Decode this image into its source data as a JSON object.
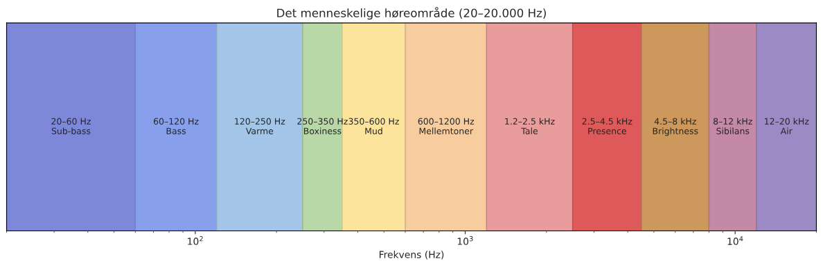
{
  "chart_data": {
    "type": "bar",
    "orientation": "horizontal",
    "title": "Det menneskelige høreområde (20–20.000 Hz)",
    "xlabel": "Frekvens (Hz)",
    "log": "x",
    "xlim": [
      20,
      20000
    ],
    "xticks": [
      {
        "value": 100,
        "label": "10$^{2}$"
      },
      {
        "value": 1000,
        "label": "10$^{3}$"
      },
      {
        "value": 10000,
        "label": "10$^{4}$"
      }
    ],
    "tick_labels": "x",
    "categories": [
      null
    ],
    "series": [
      {
        "base": [
          20
        ],
        "values": [
          40
        ],
        "value_labels": [
          "20–60 Hz\nSub-bass"
        ],
        "color": "#7d89d8"
      },
      {
        "base": [
          60
        ],
        "values": [
          60
        ],
        "value_labels": [
          "60–120 Hz\nBass"
        ],
        "color": "#88a0ec"
      },
      {
        "base": [
          120
        ],
        "values": [
          130
        ],
        "value_labels": [
          "120–250 Hz\nVarme"
        ],
        "color": "#a3c6e8"
      },
      {
        "base": [
          250
        ],
        "values": [
          100
        ],
        "value_labels": [
          "250–350 Hz\nBoxiness"
        ],
        "color": "#b8d8a8"
      },
      {
        "base": [
          350
        ],
        "values": [
          250
        ],
        "value_labels": [
          "350–600 Hz\nMud"
        ],
        "color": "#fde49c"
      },
      {
        "base": [
          600
        ],
        "values": [
          600
        ],
        "value_labels": [
          "600–1200 Hz\nMellemtoner"
        ],
        "color": "#f7cda0"
      },
      {
        "base": [
          1200
        ],
        "values": [
          1300
        ],
        "value_labels": [
          "1.2–2.5 kHz\nTale"
        ],
        "color": "#e99c9c"
      },
      {
        "base": [
          2500
        ],
        "values": [
          2000
        ],
        "value_labels": [
          "2.5–4.5 kHz\nPresence"
        ],
        "color": "#de5a5a"
      },
      {
        "base": [
          4500
        ],
        "values": [
          3500
        ],
        "value_labels": [
          "4.5–8 kHz\nBrightness"
        ],
        "color": "#cc985c"
      },
      {
        "base": [
          8000
        ],
        "values": [
          4000
        ],
        "value_labels": [
          "8–12 kHz\nSibilans"
        ],
        "color": "#c389a6"
      },
      {
        "base": [
          12000
        ],
        "values": [
          8000
        ],
        "value_labels": [
          "12–20 kHz\nAir"
        ],
        "color": "#9b8ac4"
      }
    ]
  }
}
